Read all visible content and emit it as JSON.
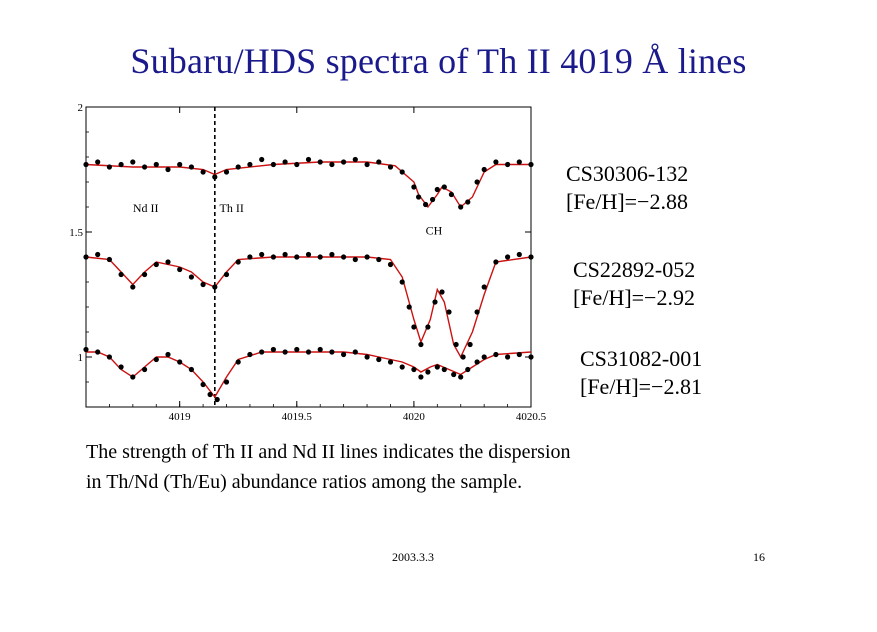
{
  "title": "Subaru/HDS spectra of Th II 4019 Å  lines",
  "stars": [
    {
      "name": "CS30306-132",
      "feh": "[Fe/H]=−2.88"
    },
    {
      "name": "CS22892-052",
      "feh": "[Fe/H]=−2.92"
    },
    {
      "name": "CS31082-001",
      "feh": "[Fe/H]=−2.81"
    }
  ],
  "caption_line1": "The strength of Th II and Nd II lines indicates the dispersion",
  "caption_line2": "in Th/Nd (Th/Eu) abundance ratios among the sample.",
  "footer": {
    "date": "2003.3.3",
    "page": "16"
  },
  "colors": {
    "title": "#1a1a8c",
    "model_curve": "#cc1111",
    "observed_points": "#000000"
  },
  "chart_data": {
    "type": "line",
    "xlim": [
      4018.6,
      4020.5
    ],
    "ylim": [
      0.8,
      2.0
    ],
    "xticks": [
      4019,
      4019.5,
      4020,
      4020.5
    ],
    "xtick_labels": [
      "4019",
      "4019.5",
      "4020",
      "4020.5"
    ],
    "yticks": [
      1.0,
      1.5,
      2.0
    ],
    "ytick_labels": [
      "1",
      "1.5",
      "2"
    ],
    "vline_x": 4019.15,
    "annotations": [
      {
        "text": "Nd II",
        "x": 4018.8,
        "y": 1.58
      },
      {
        "text": "Th II",
        "x": 4019.17,
        "y": 1.58
      },
      {
        "text": "CH",
        "x": 4020.05,
        "y": 1.49
      }
    ],
    "series": [
      {
        "model": [
          [
            4018.6,
            1.77
          ],
          [
            4018.8,
            1.76
          ],
          [
            4019.0,
            1.76
          ],
          [
            4019.1,
            1.75
          ],
          [
            4019.15,
            1.73
          ],
          [
            4019.2,
            1.75
          ],
          [
            4019.4,
            1.77
          ],
          [
            4019.6,
            1.78
          ],
          [
            4019.8,
            1.78
          ],
          [
            4019.92,
            1.765
          ],
          [
            4020.0,
            1.7
          ],
          [
            4020.02,
            1.65
          ],
          [
            4020.06,
            1.6
          ],
          [
            4020.1,
            1.65
          ],
          [
            4020.12,
            1.68
          ],
          [
            4020.16,
            1.66
          ],
          [
            4020.2,
            1.6
          ],
          [
            4020.25,
            1.64
          ],
          [
            4020.3,
            1.74
          ],
          [
            4020.35,
            1.77
          ],
          [
            4020.5,
            1.77
          ]
        ],
        "observed": [
          [
            4018.6,
            1.77
          ],
          [
            4018.65,
            1.78
          ],
          [
            4018.7,
            1.76
          ],
          [
            4018.75,
            1.77
          ],
          [
            4018.8,
            1.78
          ],
          [
            4018.85,
            1.76
          ],
          [
            4018.9,
            1.77
          ],
          [
            4018.95,
            1.75
          ],
          [
            4019.0,
            1.77
          ],
          [
            4019.05,
            1.76
          ],
          [
            4019.1,
            1.74
          ],
          [
            4019.15,
            1.72
          ],
          [
            4019.2,
            1.74
          ],
          [
            4019.25,
            1.76
          ],
          [
            4019.3,
            1.77
          ],
          [
            4019.35,
            1.79
          ],
          [
            4019.4,
            1.77
          ],
          [
            4019.45,
            1.78
          ],
          [
            4019.5,
            1.77
          ],
          [
            4019.55,
            1.79
          ],
          [
            4019.6,
            1.78
          ],
          [
            4019.65,
            1.77
          ],
          [
            4019.7,
            1.78
          ],
          [
            4019.75,
            1.79
          ],
          [
            4019.8,
            1.77
          ],
          [
            4019.85,
            1.78
          ],
          [
            4019.9,
            1.76
          ],
          [
            4019.95,
            1.74
          ],
          [
            4020.0,
            1.68
          ],
          [
            4020.02,
            1.64
          ],
          [
            4020.05,
            1.61
          ],
          [
            4020.08,
            1.63
          ],
          [
            4020.1,
            1.67
          ],
          [
            4020.13,
            1.68
          ],
          [
            4020.16,
            1.65
          ],
          [
            4020.2,
            1.6
          ],
          [
            4020.23,
            1.62
          ],
          [
            4020.27,
            1.7
          ],
          [
            4020.3,
            1.75
          ],
          [
            4020.35,
            1.78
          ],
          [
            4020.4,
            1.77
          ],
          [
            4020.45,
            1.78
          ],
          [
            4020.5,
            1.77
          ]
        ]
      },
      {
        "model": [
          [
            4018.6,
            1.4
          ],
          [
            4018.7,
            1.39
          ],
          [
            4018.75,
            1.34
          ],
          [
            4018.8,
            1.29
          ],
          [
            4018.85,
            1.34
          ],
          [
            4018.9,
            1.38
          ],
          [
            4019.0,
            1.36
          ],
          [
            4019.05,
            1.34
          ],
          [
            4019.1,
            1.3
          ],
          [
            4019.15,
            1.28
          ],
          [
            4019.2,
            1.34
          ],
          [
            4019.25,
            1.39
          ],
          [
            4019.4,
            1.4
          ],
          [
            4019.6,
            1.4
          ],
          [
            4019.8,
            1.4
          ],
          [
            4019.9,
            1.39
          ],
          [
            4019.95,
            1.32
          ],
          [
            4020.0,
            1.15
          ],
          [
            4020.03,
            1.06
          ],
          [
            4020.07,
            1.15
          ],
          [
            4020.1,
            1.27
          ],
          [
            4020.13,
            1.22
          ],
          [
            4020.17,
            1.05
          ],
          [
            4020.2,
            1.0
          ],
          [
            4020.25,
            1.1
          ],
          [
            4020.3,
            1.25
          ],
          [
            4020.35,
            1.38
          ],
          [
            4020.5,
            1.4
          ]
        ],
        "observed": [
          [
            4018.6,
            1.4
          ],
          [
            4018.65,
            1.41
          ],
          [
            4018.7,
            1.39
          ],
          [
            4018.75,
            1.33
          ],
          [
            4018.8,
            1.28
          ],
          [
            4018.85,
            1.33
          ],
          [
            4018.9,
            1.37
          ],
          [
            4018.95,
            1.38
          ],
          [
            4019.0,
            1.35
          ],
          [
            4019.05,
            1.32
          ],
          [
            4019.1,
            1.29
          ],
          [
            4019.15,
            1.28
          ],
          [
            4019.2,
            1.33
          ],
          [
            4019.25,
            1.38
          ],
          [
            4019.3,
            1.4
          ],
          [
            4019.35,
            1.41
          ],
          [
            4019.4,
            1.4
          ],
          [
            4019.45,
            1.41
          ],
          [
            4019.5,
            1.4
          ],
          [
            4019.55,
            1.41
          ],
          [
            4019.6,
            1.4
          ],
          [
            4019.65,
            1.41
          ],
          [
            4019.7,
            1.4
          ],
          [
            4019.75,
            1.39
          ],
          [
            4019.8,
            1.4
          ],
          [
            4019.85,
            1.39
          ],
          [
            4019.9,
            1.37
          ],
          [
            4019.95,
            1.3
          ],
          [
            4019.98,
            1.2
          ],
          [
            4020.0,
            1.12
          ],
          [
            4020.03,
            1.05
          ],
          [
            4020.06,
            1.12
          ],
          [
            4020.09,
            1.22
          ],
          [
            4020.12,
            1.26
          ],
          [
            4020.15,
            1.18
          ],
          [
            4020.18,
            1.05
          ],
          [
            4020.21,
            1.0
          ],
          [
            4020.24,
            1.05
          ],
          [
            4020.27,
            1.18
          ],
          [
            4020.3,
            1.28
          ],
          [
            4020.35,
            1.38
          ],
          [
            4020.4,
            1.4
          ],
          [
            4020.45,
            1.41
          ],
          [
            4020.5,
            1.4
          ]
        ]
      },
      {
        "model": [
          [
            4018.6,
            1.02
          ],
          [
            4018.65,
            1.02
          ],
          [
            4018.7,
            1.0
          ],
          [
            4018.75,
            0.95
          ],
          [
            4018.8,
            0.92
          ],
          [
            4018.85,
            0.96
          ],
          [
            4018.9,
            1.0
          ],
          [
            4018.95,
            1.0
          ],
          [
            4019.0,
            0.98
          ],
          [
            4019.05,
            0.95
          ],
          [
            4019.1,
            0.9
          ],
          [
            4019.15,
            0.84
          ],
          [
            4019.2,
            0.92
          ],
          [
            4019.25,
            0.99
          ],
          [
            4019.35,
            1.02
          ],
          [
            4019.5,
            1.02
          ],
          [
            4019.7,
            1.02
          ],
          [
            4019.8,
            1.01
          ],
          [
            4019.9,
            0.99
          ],
          [
            4019.95,
            0.98
          ],
          [
            4020.0,
            0.96
          ],
          [
            4020.03,
            0.94
          ],
          [
            4020.07,
            0.96
          ],
          [
            4020.1,
            0.97
          ],
          [
            4020.15,
            0.95
          ],
          [
            4020.2,
            0.93
          ],
          [
            4020.25,
            0.96
          ],
          [
            4020.3,
            0.99
          ],
          [
            4020.35,
            1.01
          ],
          [
            4020.5,
            1.02
          ]
        ],
        "observed": [
          [
            4018.6,
            1.03
          ],
          [
            4018.65,
            1.02
          ],
          [
            4018.7,
            1.0
          ],
          [
            4018.75,
            0.96
          ],
          [
            4018.8,
            0.92
          ],
          [
            4018.85,
            0.95
          ],
          [
            4018.9,
            0.99
          ],
          [
            4018.95,
            1.01
          ],
          [
            4019.0,
            0.98
          ],
          [
            4019.05,
            0.95
          ],
          [
            4019.1,
            0.89
          ],
          [
            4019.13,
            0.85
          ],
          [
            4019.16,
            0.83
          ],
          [
            4019.2,
            0.9
          ],
          [
            4019.25,
            0.98
          ],
          [
            4019.3,
            1.01
          ],
          [
            4019.35,
            1.02
          ],
          [
            4019.4,
            1.03
          ],
          [
            4019.45,
            1.02
          ],
          [
            4019.5,
            1.03
          ],
          [
            4019.55,
            1.02
          ],
          [
            4019.6,
            1.03
          ],
          [
            4019.65,
            1.02
          ],
          [
            4019.7,
            1.01
          ],
          [
            4019.75,
            1.02
          ],
          [
            4019.8,
            1.0
          ],
          [
            4019.85,
            0.99
          ],
          [
            4019.9,
            0.98
          ],
          [
            4019.95,
            0.96
          ],
          [
            4020.0,
            0.95
          ],
          [
            4020.03,
            0.92
          ],
          [
            4020.06,
            0.94
          ],
          [
            4020.1,
            0.96
          ],
          [
            4020.13,
            0.95
          ],
          [
            4020.17,
            0.93
          ],
          [
            4020.2,
            0.92
          ],
          [
            4020.23,
            0.95
          ],
          [
            4020.27,
            0.98
          ],
          [
            4020.3,
            1.0
          ],
          [
            4020.35,
            1.01
          ],
          [
            4020.4,
            1.0
          ],
          [
            4020.45,
            1.01
          ],
          [
            4020.5,
            1.0
          ]
        ]
      }
    ]
  }
}
